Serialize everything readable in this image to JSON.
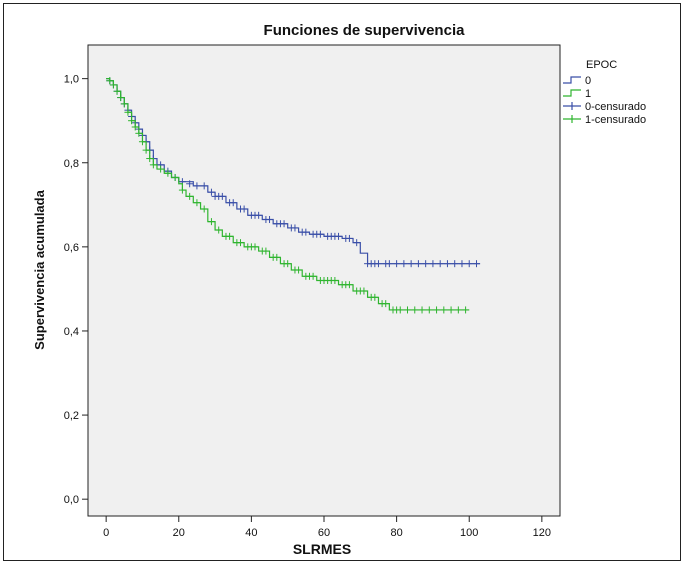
{
  "chart_data": {
    "type": "line",
    "title": "Funciones de supervivencia",
    "xlabel": "SLRMES",
    "ylabel": "Supervivencia acumulada",
    "xlim": [
      -5,
      125
    ],
    "ylim": [
      -0.04,
      1.08
    ],
    "x_ticks": [
      0,
      20,
      40,
      60,
      80,
      100,
      120
    ],
    "x_tick_labels": [
      "0",
      "20",
      "40",
      "60",
      "80",
      "100",
      "120"
    ],
    "y_ticks": [
      0.0,
      0.2,
      0.4,
      0.6,
      0.8,
      1.0
    ],
    "y_tick_labels": [
      "0,0",
      "0,2",
      "0,4",
      "0,6",
      "0,8",
      "1,0"
    ],
    "grid": false,
    "legend_title": "EPOC",
    "legend_placement": "right-top",
    "legend_entries": [
      {
        "label": "0",
        "kind": "line",
        "color": "#3a4fa8"
      },
      {
        "label": "1",
        "kind": "line",
        "color": "#2fb52f"
      },
      {
        "label": "0-censurado",
        "kind": "censored",
        "color": "#3a4fa8"
      },
      {
        "label": "1-censurado",
        "kind": "censored",
        "color": "#2fb52f"
      }
    ],
    "colors": {
      "plot_bg": "#f0f0f0",
      "group0": "#3a4fa8",
      "group1": "#2fb52f"
    },
    "series": [
      {
        "name": "0",
        "color": "#3a4fa8",
        "steps": [
          [
            0,
            1.0
          ],
          [
            1,
            0.995
          ],
          [
            2,
            0.985
          ],
          [
            3,
            0.97
          ],
          [
            4,
            0.955
          ],
          [
            5,
            0.94
          ],
          [
            6,
            0.925
          ],
          [
            7,
            0.91
          ],
          [
            8,
            0.895
          ],
          [
            9,
            0.88
          ],
          [
            10,
            0.865
          ],
          [
            11,
            0.85
          ],
          [
            12,
            0.83
          ],
          [
            13,
            0.81
          ],
          [
            14,
            0.795
          ],
          [
            16,
            0.78
          ],
          [
            18,
            0.765
          ],
          [
            20,
            0.755
          ],
          [
            24,
            0.745
          ],
          [
            28,
            0.73
          ],
          [
            30,
            0.72
          ],
          [
            33,
            0.705
          ],
          [
            36,
            0.69
          ],
          [
            39,
            0.675
          ],
          [
            43,
            0.665
          ],
          [
            46,
            0.655
          ],
          [
            50,
            0.645
          ],
          [
            53,
            0.635
          ],
          [
            56,
            0.63
          ],
          [
            60,
            0.625
          ],
          [
            65,
            0.62
          ],
          [
            68,
            0.61
          ],
          [
            70,
            0.585
          ],
          [
            72,
            0.56
          ],
          [
            103,
            0.56
          ]
        ],
        "censored_x": [
          1,
          2,
          3,
          4,
          5,
          6,
          7,
          8,
          9,
          10,
          11,
          12,
          13,
          15,
          17,
          19,
          21,
          23,
          25,
          27,
          29,
          30,
          31,
          32,
          34,
          35,
          37,
          38,
          40,
          41,
          42,
          44,
          45,
          47,
          48,
          49,
          51,
          52,
          54,
          55,
          57,
          58,
          59,
          61,
          62,
          63,
          64,
          66,
          67,
          69,
          72,
          73,
          74,
          75,
          77,
          78,
          80,
          82,
          84,
          86,
          88,
          90,
          92,
          94,
          96,
          98,
          100,
          102
        ],
        "censored_y": [
          0.995,
          0.985,
          0.97,
          0.955,
          0.94,
          0.925,
          0.91,
          0.895,
          0.88,
          0.865,
          0.85,
          0.83,
          0.81,
          0.795,
          0.78,
          0.765,
          0.755,
          0.75,
          0.745,
          0.745,
          0.73,
          0.72,
          0.72,
          0.72,
          0.705,
          0.705,
          0.69,
          0.69,
          0.675,
          0.675,
          0.675,
          0.665,
          0.665,
          0.655,
          0.655,
          0.655,
          0.645,
          0.645,
          0.635,
          0.635,
          0.63,
          0.63,
          0.63,
          0.625,
          0.625,
          0.625,
          0.625,
          0.62,
          0.62,
          0.61,
          0.56,
          0.56,
          0.56,
          0.56,
          0.56,
          0.56,
          0.56,
          0.56,
          0.56,
          0.56,
          0.56,
          0.56,
          0.56,
          0.56,
          0.56,
          0.56,
          0.56,
          0.56
        ]
      },
      {
        "name": "1",
        "color": "#2fb52f",
        "steps": [
          [
            0,
            1.0
          ],
          [
            1,
            0.995
          ],
          [
            2,
            0.985
          ],
          [
            3,
            0.97
          ],
          [
            4,
            0.955
          ],
          [
            5,
            0.94
          ],
          [
            6,
            0.92
          ],
          [
            7,
            0.9
          ],
          [
            8,
            0.885
          ],
          [
            9,
            0.87
          ],
          [
            10,
            0.85
          ],
          [
            11,
            0.83
          ],
          [
            12,
            0.81
          ],
          [
            13,
            0.795
          ],
          [
            14,
            0.785
          ],
          [
            16,
            0.775
          ],
          [
            18,
            0.765
          ],
          [
            20,
            0.75
          ],
          [
            21,
            0.735
          ],
          [
            22,
            0.72
          ],
          [
            24,
            0.705
          ],
          [
            26,
            0.69
          ],
          [
            28,
            0.66
          ],
          [
            30,
            0.64
          ],
          [
            32,
            0.625
          ],
          [
            35,
            0.61
          ],
          [
            38,
            0.6
          ],
          [
            42,
            0.59
          ],
          [
            45,
            0.575
          ],
          [
            48,
            0.56
          ],
          [
            51,
            0.545
          ],
          [
            54,
            0.53
          ],
          [
            58,
            0.52
          ],
          [
            64,
            0.51
          ],
          [
            68,
            0.495
          ],
          [
            72,
            0.48
          ],
          [
            75,
            0.465
          ],
          [
            78,
            0.45
          ],
          [
            100,
            0.45
          ]
        ],
        "censored_x": [
          1,
          2,
          3,
          4,
          5,
          6,
          7,
          8,
          9,
          10,
          11,
          12,
          13,
          15,
          17,
          19,
          21,
          23,
          25,
          27,
          29,
          31,
          33,
          34,
          36,
          37,
          39,
          40,
          41,
          43,
          44,
          46,
          47,
          49,
          50,
          52,
          53,
          55,
          56,
          57,
          59,
          60,
          61,
          62,
          63,
          65,
          66,
          67,
          69,
          70,
          71,
          73,
          74,
          76,
          77,
          79,
          80,
          81,
          83,
          85,
          87,
          89,
          91,
          93,
          95,
          97,
          99
        ],
        "censored_y": [
          0.995,
          0.985,
          0.97,
          0.955,
          0.94,
          0.92,
          0.9,
          0.885,
          0.87,
          0.85,
          0.83,
          0.81,
          0.795,
          0.785,
          0.775,
          0.765,
          0.735,
          0.72,
          0.705,
          0.69,
          0.66,
          0.64,
          0.625,
          0.625,
          0.61,
          0.61,
          0.6,
          0.6,
          0.6,
          0.59,
          0.59,
          0.575,
          0.575,
          0.56,
          0.56,
          0.545,
          0.545,
          0.53,
          0.53,
          0.53,
          0.52,
          0.52,
          0.52,
          0.52,
          0.52,
          0.51,
          0.51,
          0.51,
          0.495,
          0.495,
          0.495,
          0.48,
          0.48,
          0.465,
          0.465,
          0.45,
          0.45,
          0.45,
          0.45,
          0.45,
          0.45,
          0.45,
          0.45,
          0.45,
          0.45,
          0.45,
          0.45
        ]
      }
    ]
  }
}
